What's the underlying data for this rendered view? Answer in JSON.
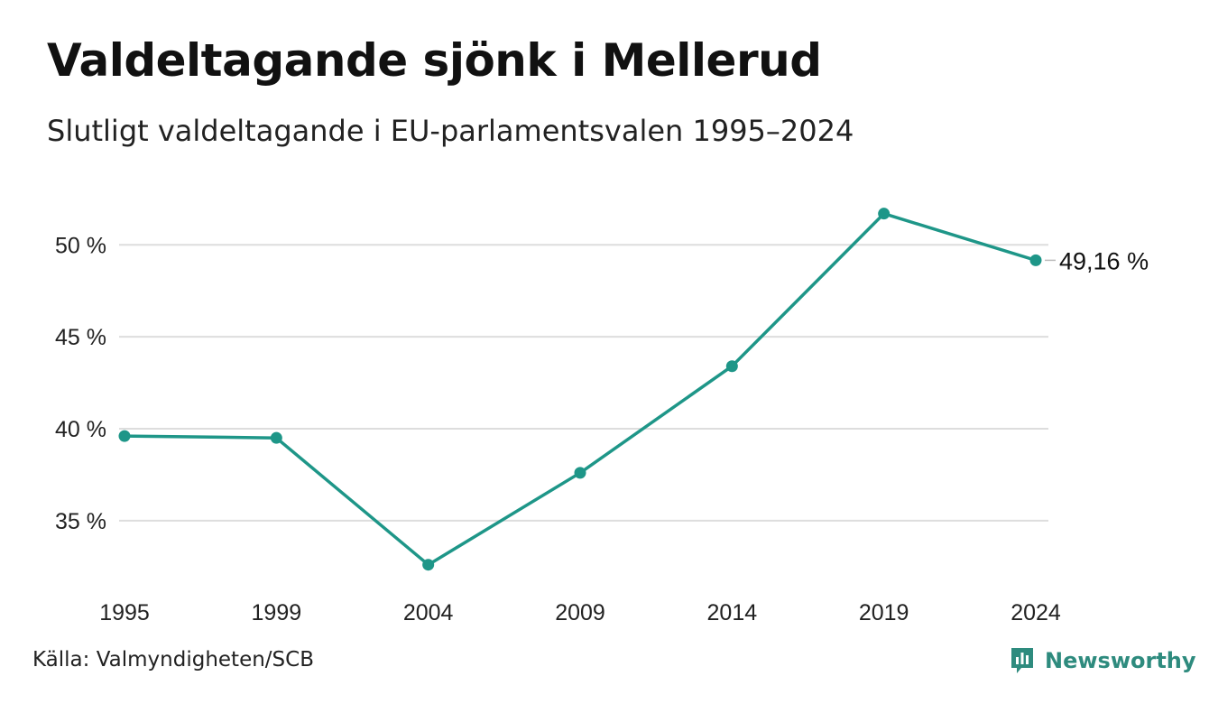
{
  "title": "Valdeltagande sjönk i Mellerud",
  "subtitle": "Slutligt valdeltagande i EU-parlamentsvalen 1995–2024",
  "source": "Källa: Valmyndigheten/SCB",
  "brand": {
    "name": "Newsworthy",
    "icon": "bar-chart-logo-icon",
    "color": "#2e8b7e"
  },
  "chart_data": {
    "type": "line",
    "title": "Valdeltagande sjönk i Mellerud",
    "subtitle": "Slutligt valdeltagande i EU-parlamentsvalen 1995–2024",
    "x": [
      "1995",
      "1999",
      "2004",
      "2009",
      "2014",
      "2019",
      "2024"
    ],
    "series": [
      {
        "values": [
          39.6,
          39.5,
          32.6,
          37.6,
          43.4,
          51.7,
          49.16
        ],
        "color": "#1e9688"
      }
    ],
    "y_ticks": [
      35,
      40,
      45,
      50
    ],
    "y_tick_labels": [
      "35 %",
      "40 %",
      "45 %",
      "50 %"
    ],
    "ylim": [
      31.8,
      53.5
    ],
    "grid": true,
    "xlabel": "",
    "ylabel": "",
    "last_value_label": "49,16 %",
    "gridline_color": "#dddddd"
  }
}
